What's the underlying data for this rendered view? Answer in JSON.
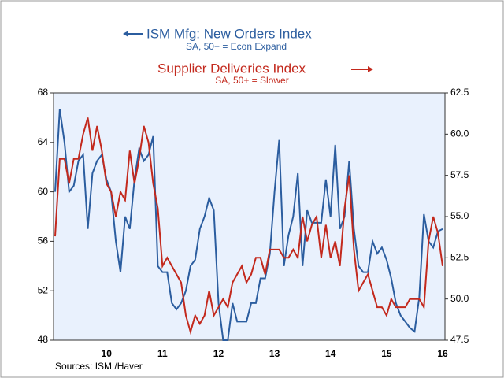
{
  "chart_data": {
    "type": "line",
    "title": "ISM Mfg: New Orders Index",
    "subtitle": "SA, 50+ = Econ Expand",
    "title2": "Supplier Deliveries Index",
    "subtitle2": "SA, 50+ = Slower",
    "source": "Sources:  ISM /Haver",
    "categories": [
      null,
      null,
      null,
      null,
      null,
      null,
      null,
      null,
      null,
      null,
      null,
      "10",
      null,
      null,
      null,
      null,
      null,
      null,
      null,
      null,
      null,
      null,
      null,
      "11",
      null,
      null,
      null,
      null,
      null,
      null,
      null,
      null,
      null,
      null,
      null,
      "12",
      null,
      null,
      null,
      null,
      null,
      null,
      null,
      null,
      null,
      null,
      null,
      "13",
      null,
      null,
      null,
      null,
      null,
      null,
      null,
      null,
      null,
      null,
      null,
      "14",
      null,
      null,
      null,
      null,
      null,
      null,
      null,
      null,
      null,
      null,
      null,
      "15",
      null,
      null,
      null,
      null,
      null,
      null,
      null,
      null,
      null,
      null,
      null,
      "16"
    ],
    "ylim": [
      48,
      68
    ],
    "yticks": [
      48,
      52,
      56,
      60,
      64,
      68
    ],
    "y2lim": [
      47.5,
      62.5
    ],
    "y2ticks": [
      47.5,
      {
        "value": 50,
        "label": "50.0"
      },
      52.5,
      {
        "value": 55,
        "label": "55.0"
      },
      57.5,
      {
        "value": 60,
        "label": "60.0"
      },
      62.5
    ],
    "series": [
      {
        "name": "ISM Mfg: New Orders Index",
        "color": "#2b5d9f",
        "values": [
          60,
          66.7,
          64,
          60,
          60.5,
          62.5,
          63,
          57,
          61.5,
          62.5,
          63,
          61,
          60,
          56,
          53.5,
          58,
          57,
          61,
          63.5,
          62.5,
          63,
          64.5,
          54,
          53.5,
          53.5,
          51,
          50.5,
          51,
          52,
          54,
          54.5,
          57,
          58,
          59.5,
          58.5,
          51,
          48,
          48,
          51,
          49.5,
          49.5,
          49.5,
          51,
          51,
          53,
          53,
          55,
          60,
          64.2,
          54,
          56.5,
          58,
          61.5,
          54,
          58.5,
          57.5,
          57.5,
          57.5,
          61,
          58,
          63.8,
          57,
          58,
          62.5,
          57,
          54,
          53.5,
          53.5,
          56,
          55,
          55.5,
          54.5,
          53,
          51,
          50,
          49.5,
          49,
          48.7,
          51.5,
          58.2,
          56,
          55.5,
          56.8,
          57
        ]
      },
      {
        "name": "Supplier Deliveries Index",
        "color": "#c3291d",
        "axis": "y2",
        "values": [
          53.8,
          58.5,
          58.5,
          57,
          58.5,
          58.5,
          60,
          61,
          59,
          60.5,
          59,
          57,
          56.5,
          55,
          56.5,
          56,
          59,
          57,
          58.5,
          60.5,
          59.5,
          57,
          55.5,
          52,
          52.5,
          52,
          51.5,
          51,
          49,
          48,
          49,
          48.5,
          49,
          50.5,
          49,
          49.5,
          50,
          49.5,
          51,
          51.5,
          52,
          51,
          51.5,
          52.5,
          52.5,
          51.5,
          53,
          53,
          53,
          52.5,
          52.5,
          53,
          52.5,
          55,
          53.5,
          54.5,
          55,
          52.5,
          54.5,
          52.5,
          53.5,
          52,
          55.5,
          57.5,
          53,
          50.5,
          51,
          51.5,
          50.5,
          49.5,
          49.5,
          49,
          50,
          49.5,
          49.5,
          49.5,
          50,
          50,
          50,
          49.5,
          53.5,
          55,
          54,
          52
        ]
      }
    ]
  }
}
